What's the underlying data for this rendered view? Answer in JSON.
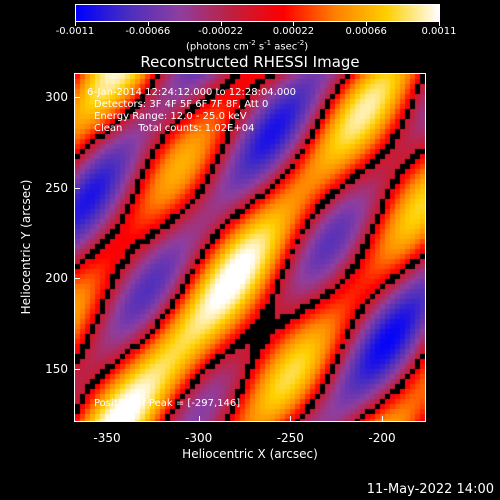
{
  "colorbar": {
    "min_label": "-0.0011",
    "tick_labels": [
      "-0.0011",
      "-0.00066",
      "-0.00022",
      "0.00022",
      "0.00066",
      "0.0011"
    ],
    "tick_values": [
      -0.0011,
      -0.00066,
      -0.00022,
      0.00022,
      0.00066,
      0.0011
    ],
    "units_text": "(photons cm",
    "units_exp1": "-2",
    "units_mid1": " s",
    "units_exp2": "-1",
    "units_mid2": " asec",
    "units_exp3": "-2",
    "units_end": ")",
    "colors": [
      "#0000ff",
      "#4b2fc0",
      "#8f3fa0",
      "#c02040",
      "#ff0000",
      "#ff8000",
      "#ffd000",
      "#ffffff"
    ]
  },
  "info": {
    "time_range": "6-Jan-2014 12:24:12.000 to 12:28:04.000",
    "detectors": "Detectors: 3F 4F 5F 6F 7F 8F, Att 0",
    "energy": "Energy Range: 12.0 - 25.0 keV",
    "clean": "Clean     Total counts: 1.02E+04",
    "peak": "Position of Peak = [-297,146]"
  },
  "footer": {
    "date": "11-May-2022 14:00"
  },
  "chart_data": {
    "type": "heatmap",
    "title": "Reconstructed RHESSI Image",
    "xlabel": "Heliocentric X (arcsec)",
    "ylabel": "Heliocentric Y (arcsec)",
    "xlim": [
      -368,
      -176
    ],
    "ylim": [
      121,
      313
    ],
    "x_ticks": [
      -350,
      -300,
      -250,
      -200
    ],
    "y_ticks": [
      150,
      200,
      250,
      300
    ],
    "x_tick_labels": [
      "-350",
      "-300",
      "-250",
      "-200"
    ],
    "y_tick_labels": [
      "150",
      "200",
      "250",
      "300"
    ],
    "zlim": [
      -0.0011,
      0.0011
    ],
    "peak_position": [
      -297,
      146
    ],
    "grid": false
  }
}
